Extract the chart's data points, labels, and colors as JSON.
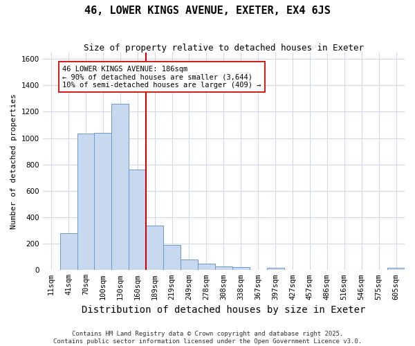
{
  "title": "46, LOWER KINGS AVENUE, EXETER, EX4 6JS",
  "subtitle": "Size of property relative to detached houses in Exeter",
  "xlabel": "Distribution of detached houses by size in Exeter",
  "ylabel": "Number of detached properties",
  "bins": [
    "11sqm",
    "41sqm",
    "70sqm",
    "100sqm",
    "130sqm",
    "160sqm",
    "189sqm",
    "219sqm",
    "249sqm",
    "278sqm",
    "308sqm",
    "338sqm",
    "367sqm",
    "397sqm",
    "427sqm",
    "457sqm",
    "486sqm",
    "516sqm",
    "546sqm",
    "575sqm",
    "605sqm"
  ],
  "values": [
    2,
    280,
    1035,
    1040,
    1260,
    760,
    335,
    190,
    80,
    50,
    30,
    20,
    2,
    15,
    2,
    2,
    2,
    2,
    2,
    2,
    15
  ],
  "bar_color": "#c8d8ee",
  "bar_edge_color": "#6699cc",
  "vline_color": "#cc0000",
  "vline_idx": 6,
  "annotation_text": "46 LOWER KINGS AVENUE: 186sqm\n← 90% of detached houses are smaller (3,644)\n10% of semi-detached houses are larger (409) →",
  "annotation_box_facecolor": "#ffffff",
  "annotation_box_edgecolor": "#cc2222",
  "ylim": [
    0,
    1650
  ],
  "yticks": [
    0,
    200,
    400,
    600,
    800,
    1000,
    1200,
    1400,
    1600
  ],
  "background_color": "#ffffff",
  "grid_color": "#d0d8e8",
  "footer_line1": "Contains HM Land Registry data © Crown copyright and database right 2025.",
  "footer_line2": "Contains public sector information licensed under the Open Government Licence v3.0.",
  "title_fontsize": 11,
  "subtitle_fontsize": 9,
  "xlabel_fontsize": 10,
  "ylabel_fontsize": 8,
  "tick_fontsize": 7.5,
  "annotation_fontsize": 7.5,
  "footer_fontsize": 6.5
}
